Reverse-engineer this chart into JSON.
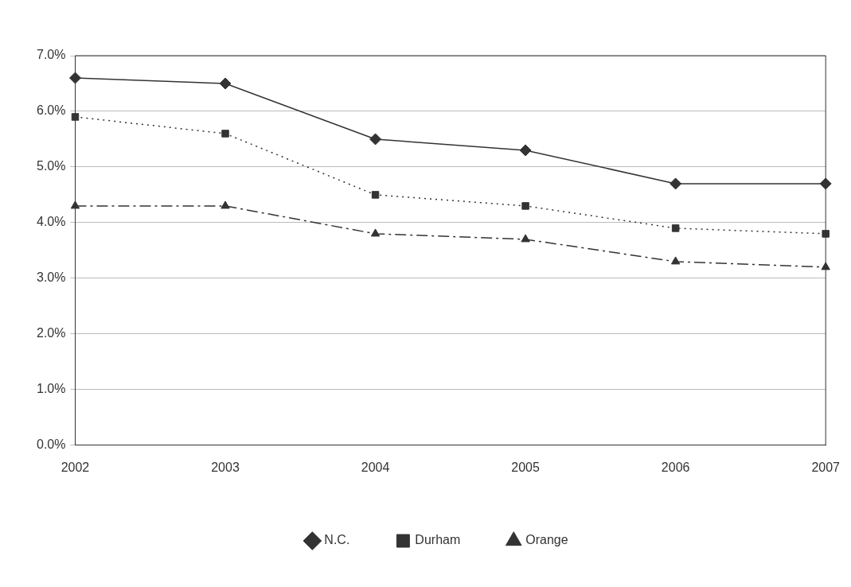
{
  "chart_data": {
    "type": "line",
    "categories": [
      "2002",
      "2003",
      "2004",
      "2005",
      "2006",
      "2007"
    ],
    "series": [
      {
        "name": "N.C.",
        "color": "#333333",
        "marker": "diamond",
        "line_style": "solid",
        "values": [
          6.6,
          6.5,
          5.5,
          5.3,
          4.7,
          4.7
        ]
      },
      {
        "name": "Durham",
        "color": "#333333",
        "marker": "square",
        "line_style": "dotted",
        "values": [
          5.9,
          5.6,
          4.5,
          4.3,
          3.9,
          3.8
        ]
      },
      {
        "name": "Orange",
        "color": "#333333",
        "marker": "triangle",
        "line_style": "dashed",
        "values": [
          4.3,
          4.3,
          3.8,
          3.7,
          3.3,
          3.2
        ]
      }
    ],
    "ylim": [
      0,
      7
    ],
    "yticks": [
      {
        "value": 0,
        "label": "0.0%"
      },
      {
        "value": 1,
        "label": "1.0%"
      },
      {
        "value": 2,
        "label": "2.0%"
      },
      {
        "value": 3,
        "label": "3.0%"
      },
      {
        "value": 4,
        "label": "4.0%"
      },
      {
        "value": 5,
        "label": "5.0%"
      },
      {
        "value": 6,
        "label": "6.0%"
      },
      {
        "value": 7,
        "label": "7.0%"
      }
    ],
    "grid": "y",
    "legend": "bottom"
  }
}
